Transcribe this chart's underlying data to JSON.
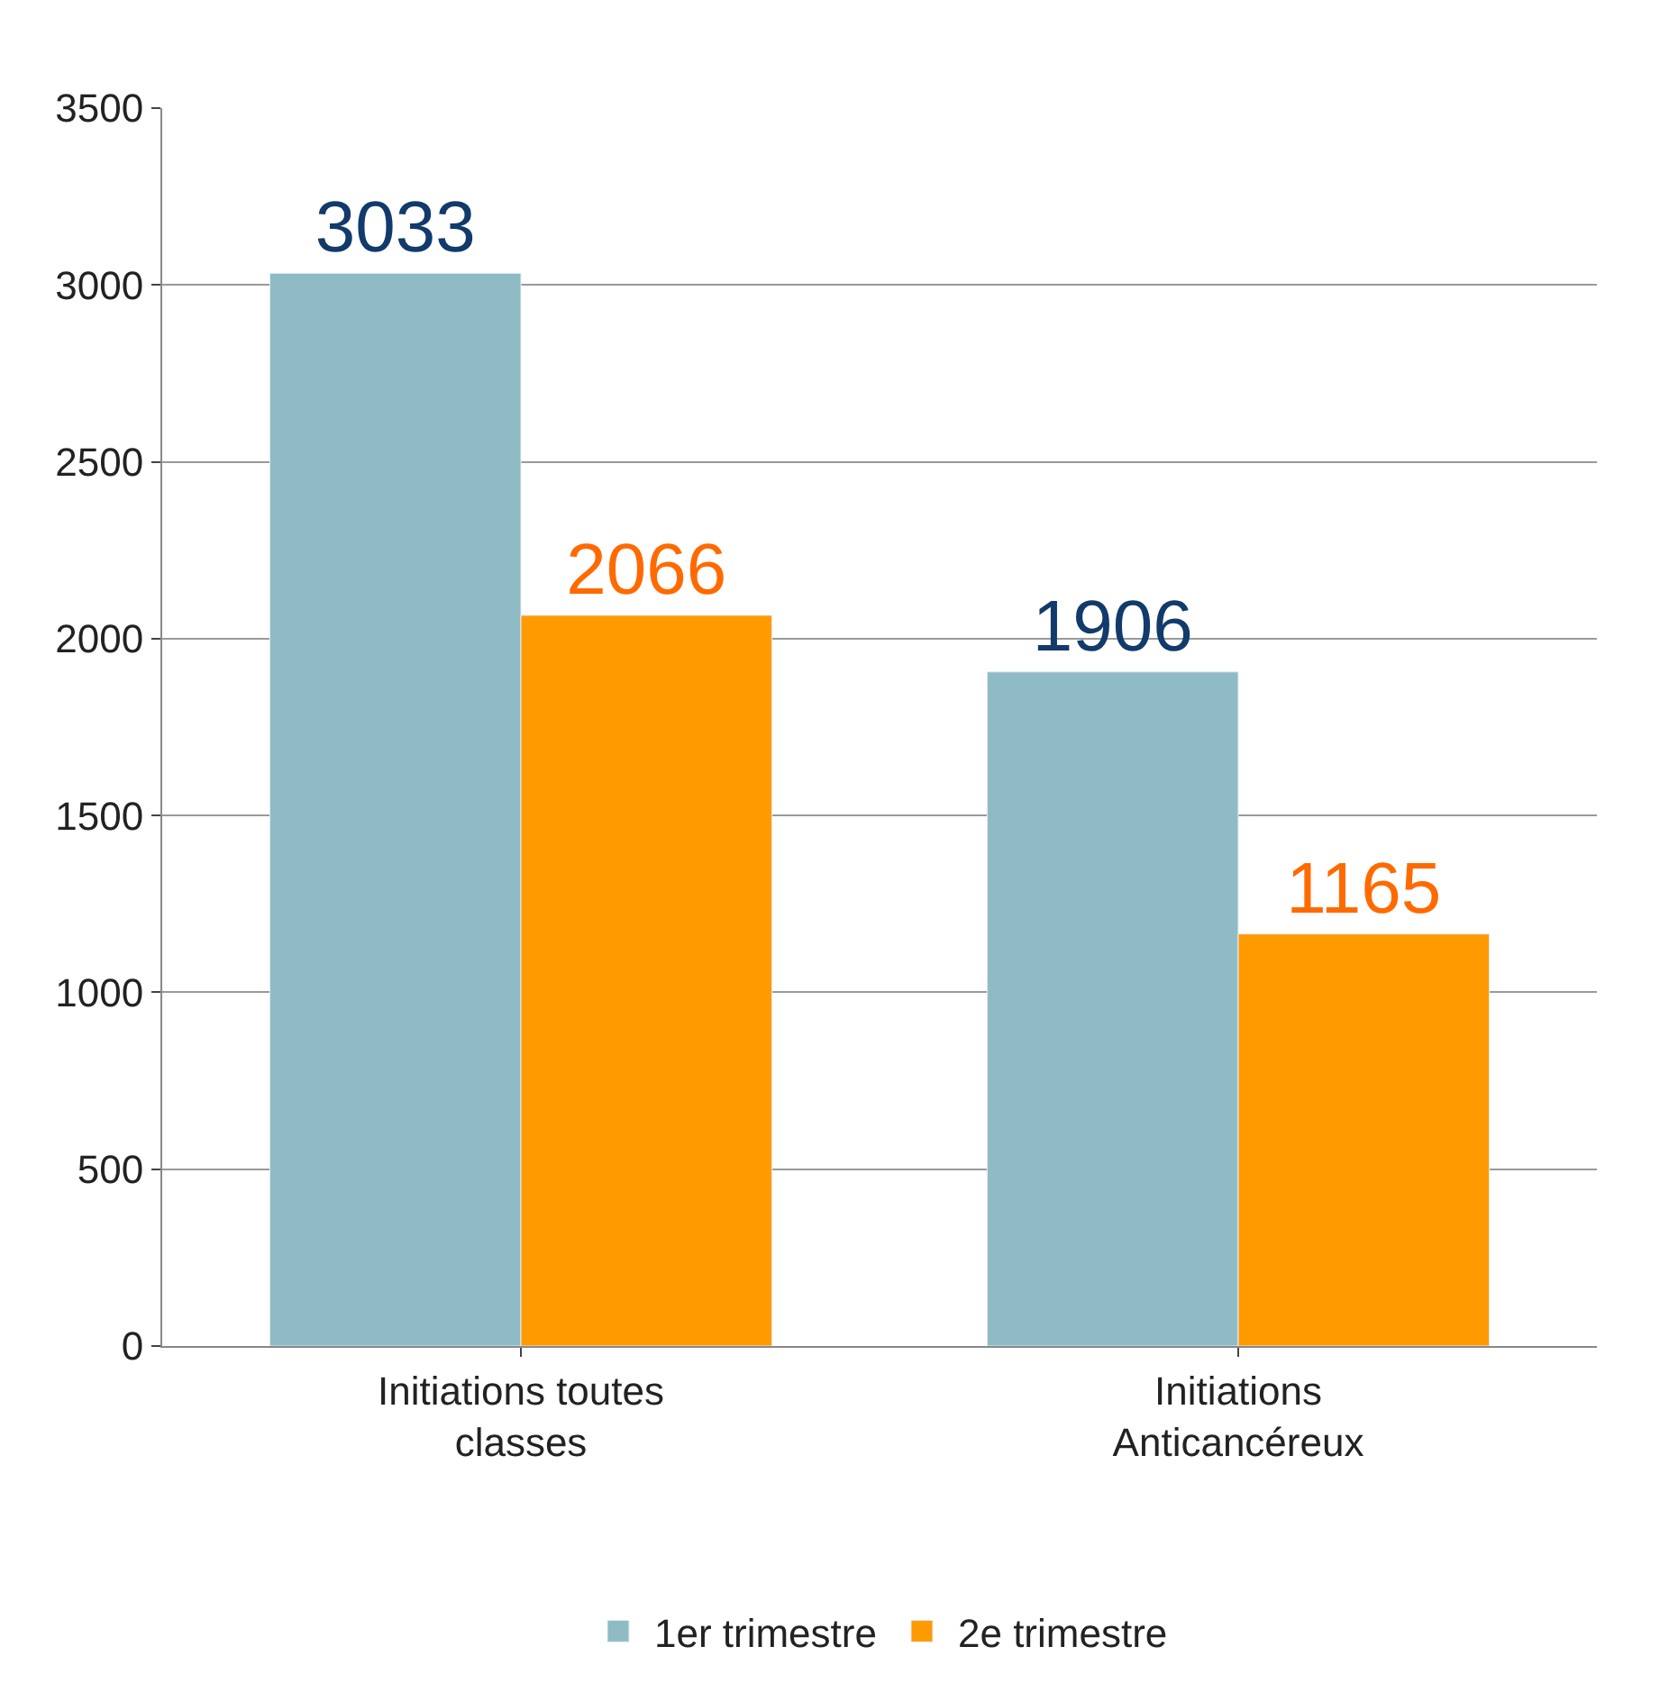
{
  "chart_data": {
    "type": "bar",
    "categories": [
      "Initiations toutes classes",
      "Initiations Anticancéreux"
    ],
    "series": [
      {
        "name": "1er trimestre",
        "color": "#8fbcc4",
        "values": [
          3033,
          1906
        ]
      },
      {
        "name": "2e trimestre",
        "color": "#ff9a00",
        "values": [
          2066,
          1165
        ]
      }
    ],
    "ylim": [
      0,
      3500
    ],
    "yticks": [
      0,
      500,
      1000,
      1500,
      2000,
      2500,
      3000,
      3500
    ],
    "grid": "y",
    "legend": "bottom",
    "data_labels": true
  }
}
